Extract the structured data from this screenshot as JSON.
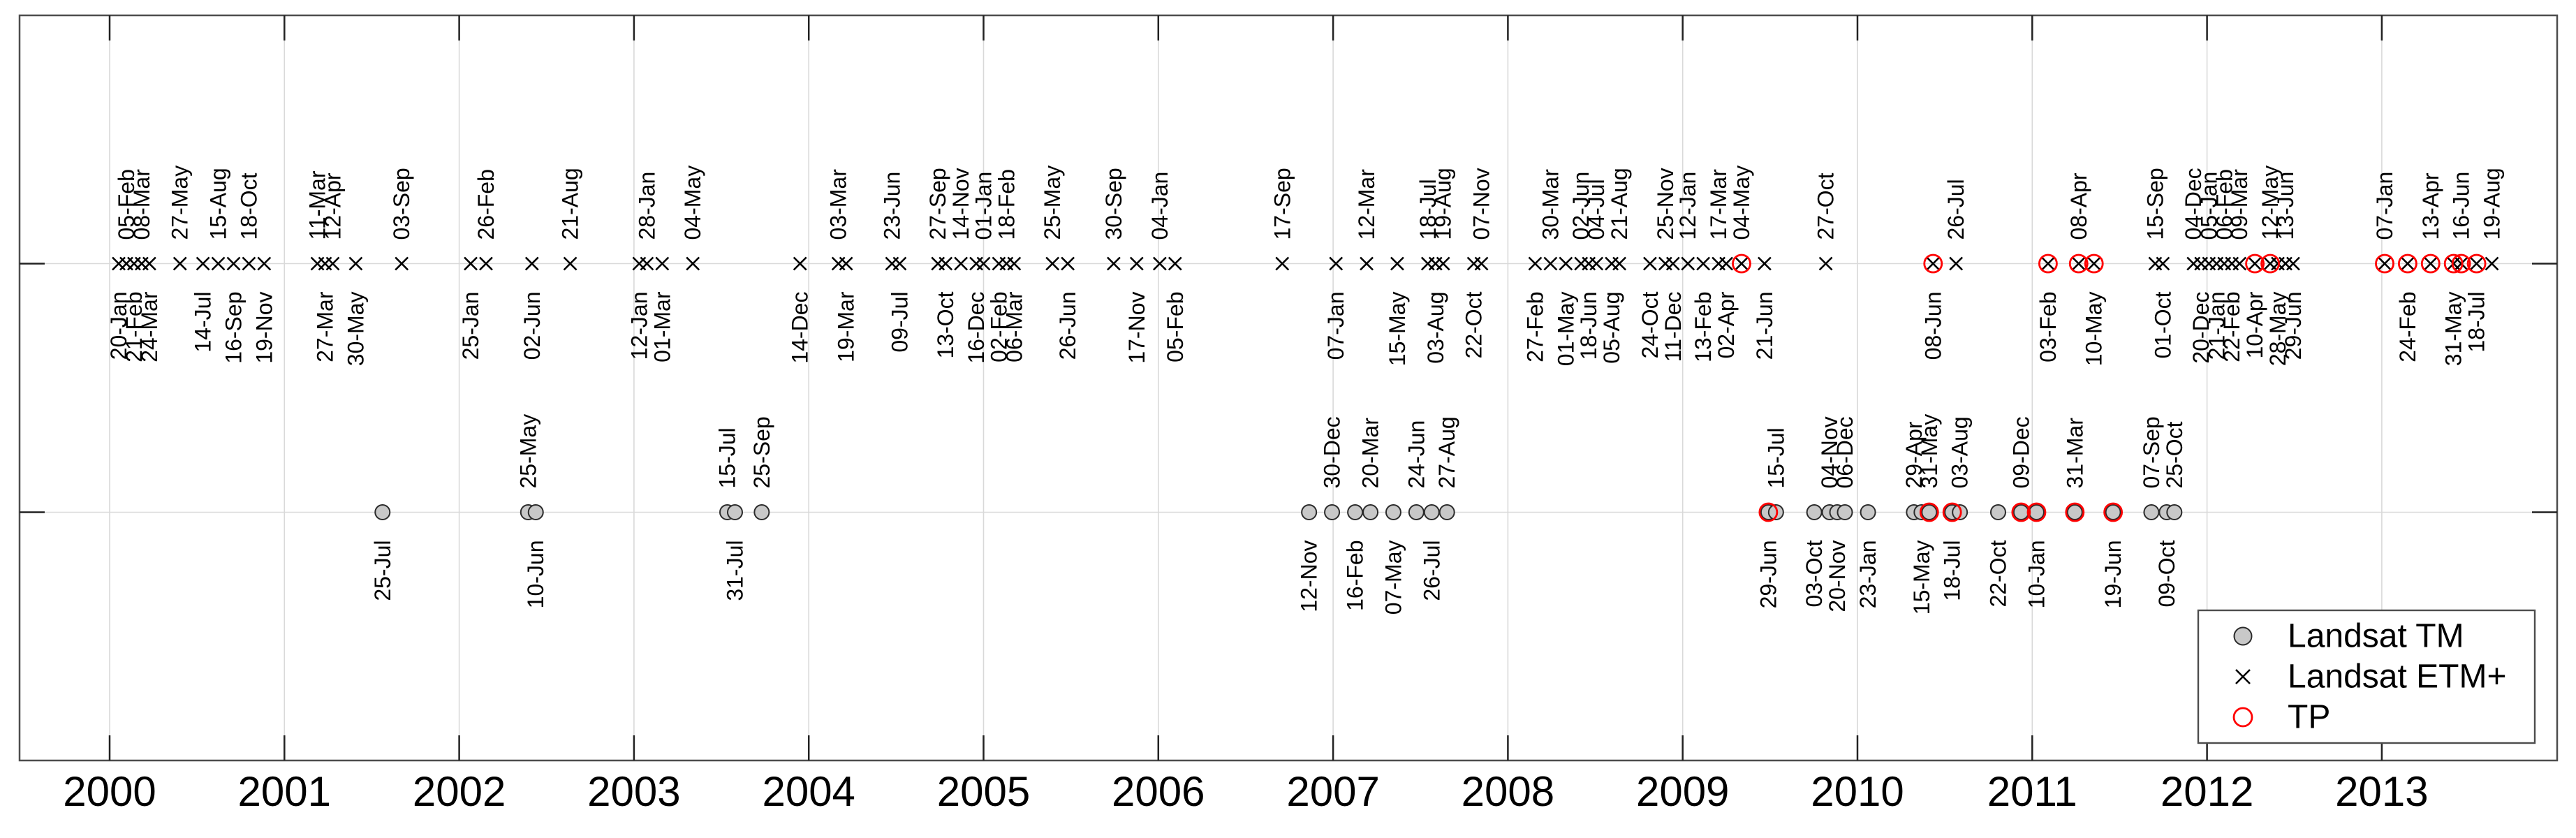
{
  "chart_data": {
    "type": "scatter",
    "title": "",
    "description": "Timeline of satellite image acquisition dates 2000-2013, two rows: Landsat ETM+ (x markers, upper row) and Landsat TM (gray filled circles, lower row); TP dates marked with red open circles",
    "grid": true,
    "x_axis": {
      "tick_labels": [
        "2000",
        "2001",
        "2002",
        "2003",
        "2004",
        "2005",
        "2006",
        "2007",
        "2008",
        "2009",
        "2010",
        "2011",
        "2012",
        "2013"
      ],
      "range_years_approx": [
        1999.5,
        2014.0
      ]
    },
    "y_axis": {
      "rows": [
        {
          "id": "etm",
          "label": "Landsat ETM+"
        },
        {
          "id": "tm",
          "label": "Landsat TM"
        }
      ]
    },
    "colors": {
      "tm_fill": "#c8c8c8",
      "tm_edge": "#2b2b2b",
      "etm_marker": "#000000",
      "tp": "#ff0000",
      "grid": "#d9d9d9",
      "axis": "#4d4d4d",
      "tick": "#222222",
      "text": "#000000",
      "legend_bg": "#ffffff"
    },
    "legend": {
      "position": "bottom-right",
      "items": [
        {
          "label": "Landsat TM",
          "marker": "filled-circle"
        },
        {
          "label": "Landsat ETM+",
          "marker": "x"
        },
        {
          "label": "TP",
          "marker": "open-circle"
        }
      ]
    },
    "series": {
      "etm": {
        "name": "Landsat ETM+",
        "points": [
          {
            "d": "2000-01-20",
            "l": "20-Jan",
            "s": "b",
            "tp": false
          },
          {
            "d": "2000-02-05",
            "l": "05-Feb",
            "s": "a",
            "tp": false
          },
          {
            "d": "2000-02-21",
            "l": "21-Feb",
            "s": "b",
            "tp": false
          },
          {
            "d": "2000-03-08",
            "l": "08-Mar",
            "s": "a",
            "tp": false
          },
          {
            "d": "2000-03-24",
            "l": "24-Mar",
            "s": "b",
            "tp": false
          },
          {
            "d": "2000-05-27",
            "l": "27-May",
            "s": "a",
            "tp": false
          },
          {
            "d": "2000-07-14",
            "l": "14-Jul",
            "s": "b",
            "tp": false
          },
          {
            "d": "2000-08-15",
            "l": "15-Aug",
            "s": "a",
            "tp": false
          },
          {
            "d": "2000-09-16",
            "l": "16-Sep",
            "s": "b",
            "tp": false
          },
          {
            "d": "2000-10-18",
            "l": "18-Oct",
            "s": "a",
            "tp": false
          },
          {
            "d": "2000-11-19",
            "l": "19-Nov",
            "s": "b",
            "tp": false
          },
          {
            "d": "2001-03-11",
            "l": "11-Mar",
            "s": "a",
            "tp": false
          },
          {
            "d": "2001-03-27",
            "l": "27-Mar",
            "s": "b",
            "tp": false
          },
          {
            "d": "2001-04-12",
            "l": "12-Apr",
            "s": "a",
            "tp": false
          },
          {
            "d": "2001-05-30",
            "l": "30-May",
            "s": "b",
            "tp": false
          },
          {
            "d": "2001-09-03",
            "l": "03-Sep",
            "s": "a",
            "tp": false
          },
          {
            "d": "2002-01-25",
            "l": "25-Jan",
            "s": "b",
            "tp": false
          },
          {
            "d": "2002-02-26",
            "l": "26-Feb",
            "s": "a",
            "tp": false
          },
          {
            "d": "2002-06-02",
            "l": "02-Jun",
            "s": "b",
            "tp": false
          },
          {
            "d": "2002-08-21",
            "l": "21-Aug",
            "s": "a",
            "tp": false
          },
          {
            "d": "2003-01-12",
            "l": "12-Jan",
            "s": "b",
            "tp": false
          },
          {
            "d": "2003-01-28",
            "l": "28-Jan",
            "s": "a",
            "tp": false
          },
          {
            "d": "2003-03-01",
            "l": "01-Mar",
            "s": "b",
            "tp": false
          },
          {
            "d": "2003-05-04",
            "l": "04-May",
            "s": "a",
            "tp": false
          },
          {
            "d": "2003-12-14",
            "l": "14-Dec",
            "s": "b",
            "tp": false
          },
          {
            "d": "2004-03-03",
            "l": "03-Mar",
            "s": "a",
            "tp": false
          },
          {
            "d": "2004-03-19",
            "l": "19-Mar",
            "s": "b",
            "tp": false
          },
          {
            "d": "2004-06-23",
            "l": "23-Jun",
            "s": "a",
            "tp": false
          },
          {
            "d": "2004-07-09",
            "l": "09-Jul",
            "s": "b",
            "tp": false
          },
          {
            "d": "2004-09-27",
            "l": "27-Sep",
            "s": "a",
            "tp": false
          },
          {
            "d": "2004-10-13",
            "l": "13-Oct",
            "s": "b",
            "tp": false
          },
          {
            "d": "2004-11-14",
            "l": "14-Nov",
            "s": "a",
            "tp": false
          },
          {
            "d": "2004-12-16",
            "l": "16-Dec",
            "s": "b",
            "tp": false
          },
          {
            "d": "2005-01-01",
            "l": "01-Jan",
            "s": "a",
            "tp": false
          },
          {
            "d": "2005-02-02",
            "l": "02-Feb",
            "s": "b",
            "tp": false
          },
          {
            "d": "2005-02-18",
            "l": "18-Feb",
            "s": "a",
            "tp": false
          },
          {
            "d": "2005-03-06",
            "l": "06-Mar",
            "s": "b",
            "tp": false
          },
          {
            "d": "2005-05-25",
            "l": "25-May",
            "s": "a",
            "tp": false
          },
          {
            "d": "2005-06-26",
            "l": "26-Jun",
            "s": "b",
            "tp": false
          },
          {
            "d": "2005-09-30",
            "l": "30-Sep",
            "s": "a",
            "tp": false
          },
          {
            "d": "2005-11-17",
            "l": "17-Nov",
            "s": "b",
            "tp": false
          },
          {
            "d": "2006-01-04",
            "l": "04-Jan",
            "s": "a",
            "tp": false
          },
          {
            "d": "2006-02-05",
            "l": "05-Feb",
            "s": "b",
            "tp": false
          },
          {
            "d": "2006-09-17",
            "l": "17-Sep",
            "s": "a",
            "tp": false
          },
          {
            "d": "2007-01-07",
            "l": "07-Jan",
            "s": "b",
            "tp": false
          },
          {
            "d": "2007-03-12",
            "l": "12-Mar",
            "s": "a",
            "tp": false
          },
          {
            "d": "2007-05-15",
            "l": "15-May",
            "s": "b",
            "tp": false
          },
          {
            "d": "2007-07-18",
            "l": "18-Jul",
            "s": "a",
            "tp": false
          },
          {
            "d": "2007-08-03",
            "l": "03-Aug",
            "s": "b",
            "tp": false
          },
          {
            "d": "2007-08-19",
            "l": "19-Aug",
            "s": "a",
            "tp": false
          },
          {
            "d": "2007-10-22",
            "l": "22-Oct",
            "s": "b",
            "tp": false
          },
          {
            "d": "2007-11-07",
            "l": "07-Nov",
            "s": "a",
            "tp": false
          },
          {
            "d": "2008-02-27",
            "l": "27-Feb",
            "s": "b",
            "tp": false
          },
          {
            "d": "2008-03-30",
            "l": "30-Mar",
            "s": "a",
            "tp": false
          },
          {
            "d": "2008-05-01",
            "l": "01-May",
            "s": "b",
            "tp": false
          },
          {
            "d": "2008-06-02",
            "l": "02-Jun",
            "s": "a",
            "tp": false
          },
          {
            "d": "2008-06-18",
            "l": "18-Jun",
            "s": "b",
            "tp": false
          },
          {
            "d": "2008-07-04",
            "l": "04-Jul",
            "s": "a",
            "tp": false
          },
          {
            "d": "2008-08-05",
            "l": "05-Aug",
            "s": "b",
            "tp": false
          },
          {
            "d": "2008-08-21",
            "l": "21-Aug",
            "s": "a",
            "tp": false
          },
          {
            "d": "2008-10-24",
            "l": "24-Oct",
            "s": "b",
            "tp": false
          },
          {
            "d": "2008-11-25",
            "l": "25-Nov",
            "s": "a",
            "tp": false
          },
          {
            "d": "2008-12-11",
            "l": "11-Dec",
            "s": "b",
            "tp": false
          },
          {
            "d": "2009-01-12",
            "l": "12-Jan",
            "s": "a",
            "tp": false
          },
          {
            "d": "2009-02-13",
            "l": "13-Feb",
            "s": "b",
            "tp": false
          },
          {
            "d": "2009-03-17",
            "l": "17-Mar",
            "s": "a",
            "tp": false
          },
          {
            "d": "2009-04-02",
            "l": "02-Apr",
            "s": "b",
            "tp": false
          },
          {
            "d": "2009-05-04",
            "l": "04-May",
            "s": "a",
            "tp": true
          },
          {
            "d": "2009-06-21",
            "l": "21-Jun",
            "s": "b",
            "tp": false
          },
          {
            "d": "2009-10-27",
            "l": "27-Oct",
            "s": "a",
            "tp": false
          },
          {
            "d": "2010-06-08",
            "l": "08-Jun",
            "s": "b",
            "tp": true
          },
          {
            "d": "2010-07-26",
            "l": "26-Jul",
            "s": "a",
            "tp": false
          },
          {
            "d": "2011-02-03",
            "l": "03-Feb",
            "s": "b",
            "tp": true
          },
          {
            "d": "2011-04-08",
            "l": "08-Apr",
            "s": "a",
            "tp": true
          },
          {
            "d": "2011-05-10",
            "l": "10-May",
            "s": "b",
            "tp": true
          },
          {
            "d": "2011-09-15",
            "l": "15-Sep",
            "s": "a",
            "tp": false
          },
          {
            "d": "2011-10-01",
            "l": "01-Oct",
            "s": "b",
            "tp": false
          },
          {
            "d": "2011-12-04",
            "l": "04-Dec",
            "s": "a",
            "tp": false
          },
          {
            "d": "2011-12-20",
            "l": "20-Dec",
            "s": "b",
            "tp": false
          },
          {
            "d": "2012-01-05",
            "l": "05-Jan",
            "s": "a",
            "tp": false
          },
          {
            "d": "2012-01-21",
            "l": "21-Jan",
            "s": "b",
            "tp": false
          },
          {
            "d": "2012-02-06",
            "l": "06-Feb",
            "s": "a",
            "tp": false
          },
          {
            "d": "2012-02-22",
            "l": "22-Feb",
            "s": "b",
            "tp": false
          },
          {
            "d": "2012-03-09",
            "l": "09-Mar",
            "s": "a",
            "tp": false
          },
          {
            "d": "2012-04-10",
            "l": "10-Apr",
            "s": "b",
            "tp": true
          },
          {
            "d": "2012-05-12",
            "l": "12-May",
            "s": "a",
            "tp": true
          },
          {
            "d": "2012-05-28",
            "l": "28-May",
            "s": "b",
            "tp": false
          },
          {
            "d": "2012-06-13",
            "l": "13-Jun",
            "s": "a",
            "tp": false
          },
          {
            "d": "2012-06-29",
            "l": "29-Jun",
            "s": "b",
            "tp": false
          },
          {
            "d": "2013-01-07",
            "l": "07-Jan",
            "s": "a",
            "tp": true
          },
          {
            "d": "2013-02-24",
            "l": "24-Feb",
            "s": "b",
            "tp": true
          },
          {
            "d": "2013-04-13",
            "l": "13-Apr",
            "s": "a",
            "tp": true
          },
          {
            "d": "2013-05-31",
            "l": "31-May",
            "s": "b",
            "tp": true
          },
          {
            "d": "2013-06-16",
            "l": "16-Jun",
            "s": "a",
            "tp": true
          },
          {
            "d": "2013-07-18",
            "l": "18-Jul",
            "s": "b",
            "tp": true
          },
          {
            "d": "2013-08-19",
            "l": "19-Aug",
            "s": "a",
            "tp": false
          }
        ]
      },
      "tm": {
        "name": "Landsat TM",
        "points": [
          {
            "d": "2001-07-25",
            "l": "25-Jul",
            "s": "b",
            "tp": false
          },
          {
            "d": "2002-05-25",
            "l": "25-May",
            "s": "a",
            "tp": false
          },
          {
            "d": "2002-06-10",
            "l": "10-Jun",
            "s": "b",
            "tp": false
          },
          {
            "d": "2003-07-15",
            "l": "15-Jul",
            "s": "a",
            "tp": false
          },
          {
            "d": "2003-07-31",
            "l": "31-Jul",
            "s": "b",
            "tp": false
          },
          {
            "d": "2003-09-25",
            "l": "25-Sep",
            "s": "a",
            "tp": false
          },
          {
            "d": "2006-11-12",
            "l": "12-Nov",
            "s": "b",
            "tp": false
          },
          {
            "d": "2006-12-30",
            "l": "30-Dec",
            "s": "a",
            "tp": false
          },
          {
            "d": "2007-02-16",
            "l": "16-Feb",
            "s": "b",
            "tp": false
          },
          {
            "d": "2007-03-20",
            "l": "20-Mar",
            "s": "a",
            "tp": false
          },
          {
            "d": "2007-05-07",
            "l": "07-May",
            "s": "b",
            "tp": false
          },
          {
            "d": "2007-06-24",
            "l": "24-Jun",
            "s": "a",
            "tp": false
          },
          {
            "d": "2007-07-26",
            "l": "26-Jul",
            "s": "b",
            "tp": false
          },
          {
            "d": "2007-08-27",
            "l": "27-Aug",
            "s": "a",
            "tp": false
          },
          {
            "d": "2009-06-29",
            "l": "29-Jun",
            "s": "b",
            "tp": true
          },
          {
            "d": "2009-07-15",
            "l": "15-Jul",
            "s": "a",
            "tp": false
          },
          {
            "d": "2009-10-03",
            "l": "03-Oct",
            "s": "b",
            "tp": false
          },
          {
            "d": "2009-11-04",
            "l": "04-Nov",
            "s": "a",
            "tp": false
          },
          {
            "d": "2009-11-20",
            "l": "20-Nov",
            "s": "b",
            "tp": false
          },
          {
            "d": "2009-12-06",
            "l": "06-Dec",
            "s": "a",
            "tp": false
          },
          {
            "d": "2010-01-23",
            "l": "23-Jan",
            "s": "b",
            "tp": false
          },
          {
            "d": "2010-04-29",
            "l": "29-Apr",
            "s": "a",
            "tp": false
          },
          {
            "d": "2010-05-15",
            "l": "15-May",
            "s": "b",
            "tp": false
          },
          {
            "d": "2010-05-31",
            "l": "31-May",
            "s": "a",
            "tp": true
          },
          {
            "d": "2010-07-18",
            "l": "18-Jul",
            "s": "b",
            "tp": true
          },
          {
            "d": "2010-08-03",
            "l": "03-Aug",
            "s": "a",
            "tp": false
          },
          {
            "d": "2010-10-22",
            "l": "22-Oct",
            "s": "b",
            "tp": false
          },
          {
            "d": "2010-12-09",
            "l": "09-Dec",
            "s": "a",
            "tp": true
          },
          {
            "d": "2011-01-10",
            "l": "10-Jan",
            "s": "b",
            "tp": true
          },
          {
            "d": "2011-03-31",
            "l": "31-Mar",
            "s": "a",
            "tp": true
          },
          {
            "d": "2011-06-19",
            "l": "19-Jun",
            "s": "b",
            "tp": true
          },
          {
            "d": "2011-09-07",
            "l": "07-Sep",
            "s": "a",
            "tp": false
          },
          {
            "d": "2011-10-09",
            "l": "09-Oct",
            "s": "b",
            "tp": false
          },
          {
            "d": "2011-10-25",
            "l": "25-Oct",
            "s": "a",
            "tp": false
          }
        ]
      }
    }
  }
}
